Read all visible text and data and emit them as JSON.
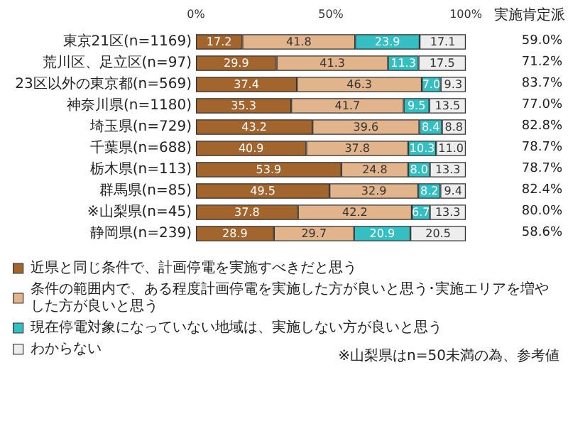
{
  "chart_data": {
    "type": "bar",
    "orientation": "horizontal",
    "stacked": true,
    "categories": [
      "東京21区(n=1169)",
      "荒川区、足立区(n=97)",
      "23区以外の東京都(n=569)",
      "神奈川県(n=1180)",
      "埼玉県(n=729)",
      "千葉県(n=688)",
      "栃木県(n=113)",
      "群馬県(n=85)",
      "※山梨県(n=45)",
      "静岡県(n=239)"
    ],
    "series": [
      {
        "name": "近県と同じ条件で、計画停電を実施すべきだと思う",
        "color": "#a3652e",
        "values": [
          17.2,
          29.9,
          37.4,
          35.3,
          43.2,
          40.9,
          53.9,
          49.5,
          37.8,
          28.9
        ],
        "value_labels": [
          "17.2",
          "29.9",
          "37.4",
          "35.3",
          "43.2",
          "40.9",
          "53.9",
          "49.5",
          "37.8",
          "28.9"
        ]
      },
      {
        "name": "条件の範囲内で、ある程度計画停電を実施した方が良いと思う･実施エリアを増やした方が良いと思う",
        "color": "#e2b48c",
        "values": [
          41.8,
          41.3,
          46.3,
          41.7,
          39.6,
          37.8,
          24.8,
          32.9,
          42.2,
          29.7
        ],
        "value_labels": [
          "41.8",
          "41.3",
          "46.3",
          "41.7",
          "39.6",
          "37.8",
          "24.8",
          "32.9",
          "42.2",
          "29.7"
        ]
      },
      {
        "name": "現在停電対象になっていない地域は、実施しない方が良いと思う",
        "color": "#36bfc3",
        "values": [
          23.9,
          11.3,
          7.0,
          9.5,
          8.4,
          10.3,
          8.0,
          8.2,
          6.7,
          20.9
        ],
        "value_labels": [
          "23.9",
          "11.3",
          "7.0",
          "9.5",
          "8.4",
          "10.3",
          "8.0",
          "8.2",
          "6.7",
          "20.9"
        ]
      },
      {
        "name": "わからない",
        "color": "#ededed",
        "values": [
          17.1,
          17.5,
          9.3,
          13.5,
          8.8,
          11.0,
          13.3,
          9.4,
          13.3,
          20.5
        ],
        "value_labels": [
          "17.1",
          "17.5",
          "9.3",
          "13.5",
          "8.8",
          "11.0",
          "13.3",
          "9.4",
          "13.3",
          "20.5"
        ]
      }
    ],
    "xlim": [
      0,
      100
    ],
    "xticks": [
      {
        "value": 0,
        "label": "0%"
      },
      {
        "value": 50,
        "label": "50%"
      },
      {
        "value": 100,
        "label": "100%"
      }
    ],
    "legend": "bottom left",
    "annotations": [
      "実施肯定派",
      "59.0%",
      "71.2%",
      "83.7%",
      "77.0%",
      "82.8%",
      "78.7%",
      "78.7%",
      "82.4%",
      "80.0%",
      "58.6%",
      "※山梨県はn=50未満の為、参考値"
    ]
  }
}
